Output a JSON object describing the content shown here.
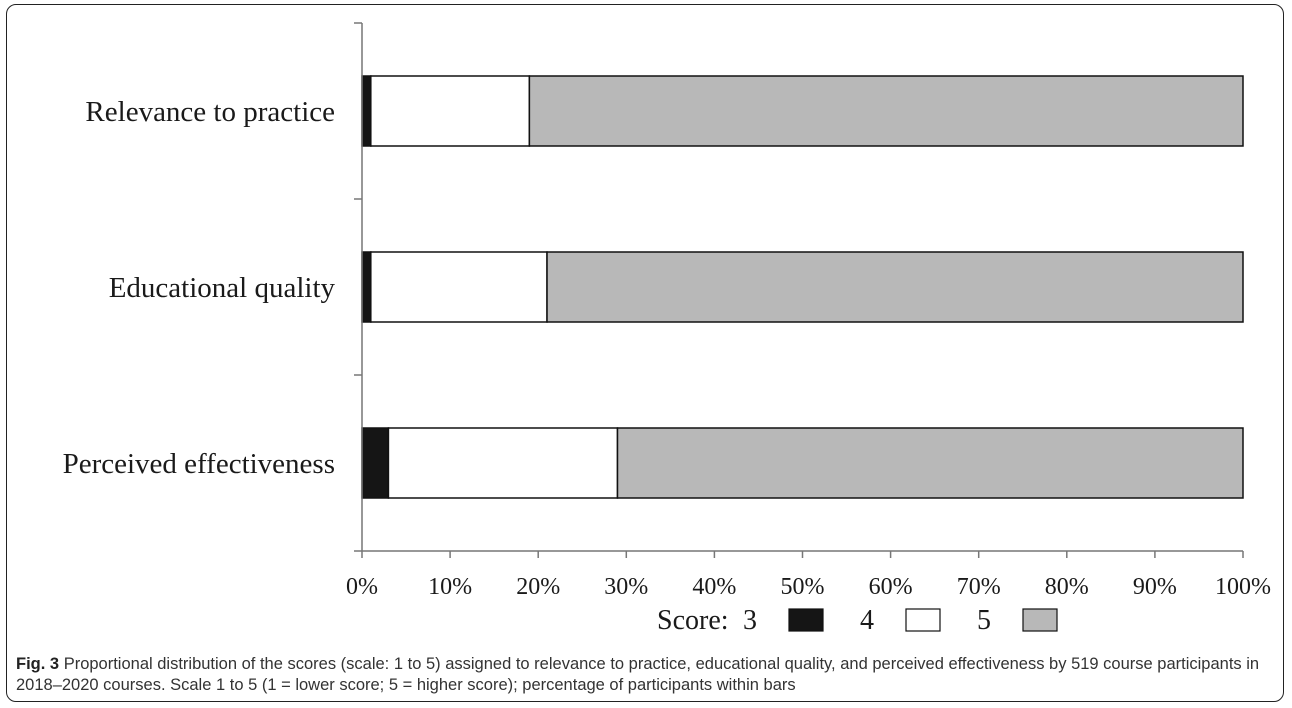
{
  "chart_data": {
    "type": "bar",
    "orientation": "horizontal",
    "stacked": true,
    "categories": [
      "Relevance to practice",
      "Educational quality",
      "Perceived effectiveness"
    ],
    "series": [
      {
        "name": "3",
        "color": "#151515",
        "values": [
          1,
          1,
          3
        ]
      },
      {
        "name": "4",
        "color": "#ffffff",
        "values": [
          18,
          20,
          26
        ]
      },
      {
        "name": "5",
        "color": "#b8b8b8",
        "values": [
          81,
          79,
          71
        ]
      }
    ],
    "xlim": [
      0,
      100
    ],
    "x_ticks": [
      "0%",
      "10%",
      "20%",
      "30%",
      "40%",
      "50%",
      "60%",
      "70%",
      "80%",
      "90%",
      "100%"
    ],
    "legend_title": "Score:",
    "legend_placement": "bottom",
    "grid": false
  },
  "caption": {
    "fig_label": "Fig. 3",
    "text": "Proportional distribution of the scores (scale: 1 to 5) assigned to relevance to practice, educational quality, and perceived effectiveness by 519 course participants in 2018–2020 courses. Scale 1 to 5 (1 = lower score; 5 = higher score); percentage of participants within bars"
  }
}
